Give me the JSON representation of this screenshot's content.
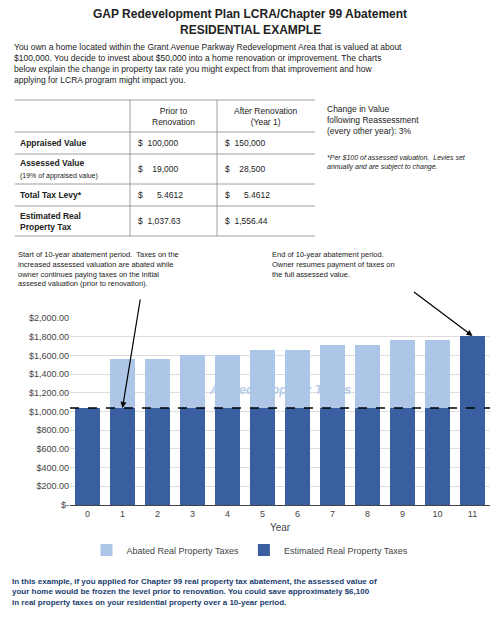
{
  "chart_data": {
    "type": "bar",
    "title": "GAP Redevelopment Plan LCRA/Chapter 99 Abatement",
    "subtitle": "RESIDENTIAL EXAMPLE",
    "intro_text": "You own a home located within the Grant Avenue Parkway Redevelopment Area that is valued at about\n$100,000. You decide to invest about $50,000 into a home renovation or improvement. The charts\nbelow explain the change in property tax rate you might expect from that improvement and how\napplying for LCRA program might impact you.",
    "table": {
      "columns": [
        "Prior to\nRenovation",
        "After Renovation\n(Year 1)"
      ],
      "rows": [
        {
          "label": "Appraised Value",
          "prior": "$  100,000",
          "after": "$  150,000"
        },
        {
          "label": "Assessed Value",
          "sublabel": "(19% of appraised value)",
          "prior": "$    19,000",
          "after": "$    28,500"
        },
        {
          "label": "Total Tax Levy*",
          "prior": "$      5.4612",
          "after": "$      5.4612"
        },
        {
          "label": "Estimated Real\nProperty Tax",
          "prior": "$  1,037.63",
          "after": "$  1,556.44"
        }
      ]
    },
    "notes": [
      "Change in Value\nfollowing Reassessment\n(every other year): 3%",
      "*Per $100 of assessed valuation.  Levies set\nannually and are subject to change."
    ],
    "annotations": [
      {
        "text": "Start of 10-year abatement period.  Taxes on the\nincreased assessed valuation are abated while\nowner continues paying taxes on the initial\nassesed valuation (prior to renovation).",
        "x": 1
      },
      {
        "text": "End of 10-year abatement period.\nOwner resumes payment of taxes on\nthe full assessed value.",
        "x": 11
      }
    ],
    "watermark": "Abated Property Taxes",
    "footer": {
      "text": "In this example, if you applied for Chapter 99 real property tax abatement, the assessed value of\nyour home would be frozen the level prior to renovation. You could save approximately $6,100\nin real property taxes on your residential property over a 10-year period.",
      "color": "#1a3c6e"
    },
    "xlabel": "Year",
    "x": [
      0,
      1,
      2,
      3,
      4,
      5,
      6,
      7,
      8,
      9,
      10,
      11
    ],
    "xlim": [
      -0.5,
      11.5
    ],
    "xticks": [
      0,
      1,
      2,
      3,
      4,
      5,
      6,
      7,
      8,
      9,
      10,
      11
    ],
    "ylim": [
      0,
      2000
    ],
    "yticks": [
      {
        "value": 0,
        "label": "$-"
      },
      {
        "value": 200,
        "label": "$200.00"
      },
      {
        "value": 400,
        "label": "$400.00"
      },
      {
        "value": 600,
        "label": "$600.00"
      },
      {
        "value": 800,
        "label": "$800.00"
      },
      {
        "value": 1000,
        "label": "$1,000.00"
      },
      {
        "value": 1200,
        "label": "$1,200.00"
      },
      {
        "value": 1400,
        "label": "$1,400.00"
      },
      {
        "value": 1600,
        "label": "$1,600.00"
      },
      {
        "value": 1800,
        "label": "$1,800.00"
      },
      {
        "value": 2000,
        "label": "$2,000.00"
      }
    ],
    "stacked": true,
    "grid": true,
    "legend": "bottom",
    "reference_line": {
      "value": 1037.63,
      "line_style": "dashed"
    },
    "series": [
      {
        "name": "Estimated Real Property Taxes",
        "color": "#3a5fa0",
        "values": [
          1037.63,
          1037.63,
          1037.63,
          1037.63,
          1037.63,
          1037.63,
          1037.63,
          1037.63,
          1037.63,
          1037.63,
          1037.63,
          1808.49
        ]
      },
      {
        "name": "Abated Real Property Taxes",
        "color": "#adc6e8",
        "values": [
          null,
          518.81,
          518.81,
          570.81,
          570.81,
          622.81,
          622.81,
          676.81,
          676.81,
          730.81,
          730.81,
          null
        ]
      }
    ]
  }
}
